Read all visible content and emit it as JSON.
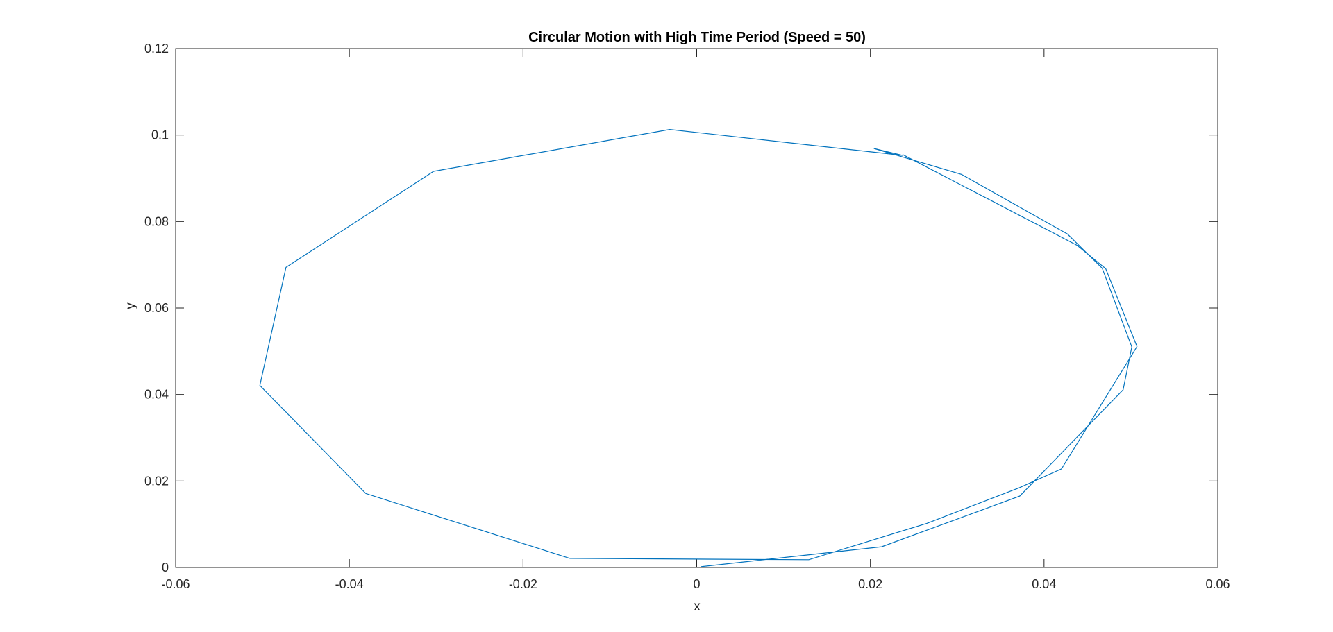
{
  "chart_data": {
    "type": "line",
    "title": "Circular Motion with High Time Period (Speed = 50)",
    "xlabel": "x",
    "ylabel": "y",
    "xlim": [
      -0.06,
      0.06
    ],
    "ylim": [
      0,
      0.12
    ],
    "x_ticks": [
      -0.06,
      -0.04,
      -0.02,
      0,
      0.02,
      0.04,
      0.06
    ],
    "x_tick_labels": [
      "-0.06",
      "-0.04",
      "-0.02",
      "0",
      "0.02",
      "0.04",
      "0.06"
    ],
    "y_ticks": [
      0,
      0.02,
      0.04,
      0.06,
      0.08,
      0.1,
      0.12
    ],
    "y_tick_labels": [
      "0",
      "0.02",
      "0.04",
      "0.06",
      "0.08",
      "0.1",
      "0.12"
    ],
    "grid": false,
    "box": true,
    "series": [
      {
        "color": "#0072BD",
        "x": [
          0.0005,
          0.0213,
          0.0372,
          0.0491,
          0.0501,
          0.0467,
          0.0427,
          0.0305,
          0.0204,
          0.0237,
          -0.0031,
          -0.0303,
          -0.0473,
          -0.0503,
          -0.0381,
          -0.0146,
          0.0129,
          0.0265,
          0.0371,
          0.042,
          0.0507,
          0.0471,
          0.0438,
          0.0237
        ],
        "y": [
          0.0002,
          0.0048,
          0.0165,
          0.0411,
          0.051,
          0.0692,
          0.0771,
          0.0909,
          0.0969,
          0.0953,
          0.1013,
          0.0916,
          0.0694,
          0.0421,
          0.0171,
          0.0021,
          0.0018,
          0.0102,
          0.0184,
          0.0228,
          0.0511,
          0.0691,
          0.0745,
          0.0955
        ]
      }
    ]
  },
  "colors": {
    "axes": "#262626",
    "line": "#0072BD",
    "background": "#ffffff"
  }
}
